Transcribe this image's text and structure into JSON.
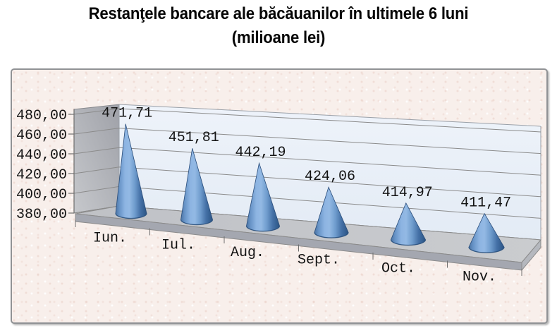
{
  "title": {
    "line1": "Restanţele bancare ale băcăuanilor în ultimele 6 luni",
    "line2": "(milioane lei)"
  },
  "chart_data": {
    "type": "bar",
    "variant": "3d-cone",
    "title": "Restanţele bancare ale băcăuanilor în ultimele 6 luni (milioane lei)",
    "categories": [
      "Iun.",
      "Iul.",
      "Aug.",
      "Sept.",
      "Oct.",
      "Nov."
    ],
    "values": [
      471.71,
      451.81,
      442.19,
      424.06,
      414.97,
      411.47
    ],
    "data_labels": [
      "471,71",
      "451,81",
      "442,19",
      "424,06",
      "414,97",
      "411,47"
    ],
    "y_ticks": [
      480,
      460,
      440,
      420,
      400,
      380
    ],
    "y_tick_labels": [
      "480,00",
      "460,00",
      "440,00",
      "420,00",
      "400,00",
      "380,00"
    ],
    "ylim": [
      380,
      480
    ],
    "y_step": 20,
    "xlabel": "",
    "ylabel": "",
    "grid": true,
    "legend": "none",
    "colors": {
      "cone_light": "#8db4e2",
      "cone_mid": "#6793c6",
      "cone_dark": "#2d5380",
      "cone_edge": "#2a4d7a",
      "wall_back_top": "#eef3fa",
      "wall_back_bottom": "#e3ebf5",
      "wall_left_dark": "#9fa1a8",
      "wall_left_light": "#c6c8cc",
      "floor_top": "#bfc1c6",
      "floor_face": "#a4a7b0",
      "floor_cap": "#b5b8be",
      "gridline": "#8b8b8b",
      "axis": "#6f6f6f",
      "panel_border": "#909295",
      "panel_bg": "#f8efeb",
      "text": "#141414",
      "title_text": "#060606"
    }
  }
}
